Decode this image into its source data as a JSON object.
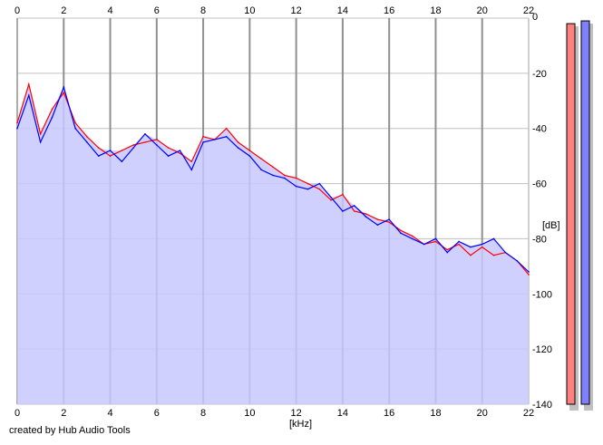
{
  "chart_data": {
    "type": "area",
    "xlabel": "[kHz]",
    "ylabel": "[dB]",
    "xlim": [
      0,
      22
    ],
    "ylim": [
      -140,
      0
    ],
    "x_ticks": [
      "0",
      "2",
      "4",
      "6",
      "8",
      "10",
      "12",
      "14",
      "16",
      "18",
      "20",
      "22"
    ],
    "y_ticks": [
      "0",
      "-20",
      "-40",
      "-60",
      "-80",
      "-100",
      "-120",
      "-140"
    ],
    "grid": true,
    "x": [
      0,
      0.5,
      1,
      1.5,
      2,
      2.5,
      3,
      3.5,
      4,
      4.5,
      5,
      5.5,
      6,
      6.5,
      7,
      7.5,
      8,
      8.5,
      9,
      9.5,
      10,
      10.5,
      11,
      11.5,
      12,
      12.5,
      13,
      13.5,
      14,
      14.5,
      15,
      15.5,
      16,
      16.5,
      17,
      17.5,
      18,
      18.5,
      19,
      19.5,
      20,
      20.5,
      21,
      21.5,
      22
    ],
    "series": [
      {
        "color": "#ff0000",
        "values": [
          -38,
          -24,
          -42,
          -33,
          -27,
          -38,
          -43,
          -47,
          -50,
          -48,
          -46,
          -45,
          -44,
          -47,
          -49,
          -52,
          -43,
          -44,
          -40,
          -45,
          -48,
          -51,
          -54,
          -57,
          -58,
          -60,
          -62,
          -66,
          -64,
          -70,
          -71,
          -73,
          -74,
          -77,
          -79,
          -82,
          -81,
          -84,
          -82,
          -86,
          -83,
          -86,
          -85,
          -88,
          -93
        ]
      },
      {
        "color": "#0000ff",
        "values": [
          -40,
          -28,
          -45,
          -36,
          -25,
          -40,
          -45,
          -50,
          -48,
          -52,
          -47,
          -42,
          -46,
          -50,
          -48,
          -55,
          -45,
          -44,
          -43,
          -47,
          -50,
          -55,
          -57,
          -58,
          -61,
          -62,
          -60,
          -65,
          -70,
          -68,
          -72,
          -75,
          -73,
          -78,
          -80,
          -82,
          -80,
          -85,
          -81,
          -83,
          -82,
          -80,
          -85,
          -88,
          -92
        ]
      }
    ],
    "fill_color": "#c8c8ff",
    "annotation": "created by Hub Audio Tools"
  },
  "meters": [
    {
      "color": "#ff8080",
      "level_db": -2
    },
    {
      "color": "#8080ff",
      "level_db": -1
    }
  ]
}
